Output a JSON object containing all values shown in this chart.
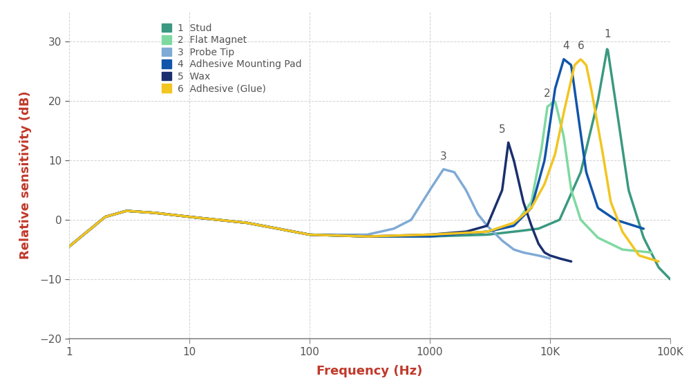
{
  "title": "",
  "xlabel": "Frequency (Hz)",
  "ylabel": "Relative sensitivity (dB)",
  "xlabel_color": "#c0392b",
  "ylabel_color": "#c0392b",
  "xlim": [
    1,
    100000
  ],
  "ylim": [
    -20,
    35
  ],
  "yticks": [
    -20,
    -10,
    0,
    10,
    20,
    30
  ],
  "xtick_labels": [
    "1",
    "10",
    "100",
    "1000",
    "10K",
    "100K"
  ],
  "xtick_vals": [
    1,
    10,
    100,
    1000,
    10000,
    100000
  ],
  "background_color": "#ffffff",
  "grid_color": "#cccccc",
  "series": [
    {
      "label": "1  Stud",
      "color": "#3a9980",
      "linewidth": 2.5,
      "points": [
        [
          1,
          -4.5
        ],
        [
          2,
          0.5
        ],
        [
          3,
          1.5
        ],
        [
          5,
          1.2
        ],
        [
          10,
          0.5
        ],
        [
          30,
          -0.5
        ],
        [
          100,
          -2.5
        ],
        [
          300,
          -2.8
        ],
        [
          1000,
          -2.8
        ],
        [
          3000,
          -2.5
        ],
        [
          5000,
          -2
        ],
        [
          8000,
          -1.5
        ],
        [
          12000,
          0
        ],
        [
          18000,
          8
        ],
        [
          25000,
          20
        ],
        [
          30000,
          29
        ],
        [
          35000,
          20
        ],
        [
          45000,
          5
        ],
        [
          60000,
          -3
        ],
        [
          80000,
          -8
        ],
        [
          100000,
          -10
        ]
      ],
      "peak_label": "1",
      "peak_x": 30000,
      "peak_y": 29.5
    },
    {
      "label": "2  Flat Magnet",
      "color": "#7ed9a0",
      "linewidth": 2.5,
      "points": [
        [
          1,
          -4.5
        ],
        [
          2,
          0.5
        ],
        [
          3,
          1.5
        ],
        [
          5,
          1.2
        ],
        [
          10,
          0.5
        ],
        [
          30,
          -0.5
        ],
        [
          100,
          -2.5
        ],
        [
          300,
          -2.8
        ],
        [
          1000,
          -2.8
        ],
        [
          3000,
          -2
        ],
        [
          5000,
          -1
        ],
        [
          7000,
          3
        ],
        [
          8500,
          12
        ],
        [
          9500,
          19
        ],
        [
          11000,
          20
        ],
        [
          13000,
          14
        ],
        [
          15000,
          5
        ],
        [
          18000,
          0
        ],
        [
          25000,
          -3
        ],
        [
          40000,
          -5
        ],
        [
          70000,
          -5.5
        ]
      ],
      "peak_label": "2",
      "peak_x": 9500,
      "peak_y": 19.5
    },
    {
      "label": "3  Probe Tip",
      "color": "#7faad5",
      "linewidth": 2.5,
      "points": [
        [
          1,
          -4.5
        ],
        [
          2,
          0.5
        ],
        [
          3,
          1.5
        ],
        [
          5,
          1.2
        ],
        [
          10,
          0.5
        ],
        [
          30,
          -0.5
        ],
        [
          100,
          -2.5
        ],
        [
          300,
          -2.5
        ],
        [
          500,
          -1.5
        ],
        [
          700,
          0
        ],
        [
          1000,
          5
        ],
        [
          1300,
          8.5
        ],
        [
          1600,
          8
        ],
        [
          2000,
          5
        ],
        [
          2500,
          1
        ],
        [
          3000,
          -1
        ],
        [
          4000,
          -3.5
        ],
        [
          5000,
          -5
        ],
        [
          6000,
          -5.5
        ],
        [
          8000,
          -6
        ],
        [
          10000,
          -6.5
        ]
      ],
      "peak_label": "3",
      "peak_x": 1300,
      "peak_y": 9
    },
    {
      "label": "4  Adhesive Mounting Pad",
      "color": "#1155aa",
      "linewidth": 2.5,
      "points": [
        [
          1,
          -4.5
        ],
        [
          2,
          0.5
        ],
        [
          3,
          1.5
        ],
        [
          5,
          1.2
        ],
        [
          10,
          0.5
        ],
        [
          30,
          -0.5
        ],
        [
          100,
          -2.5
        ],
        [
          300,
          -2.8
        ],
        [
          1000,
          -2.8
        ],
        [
          3000,
          -2
        ],
        [
          5000,
          -1
        ],
        [
          7000,
          2
        ],
        [
          9000,
          10
        ],
        [
          11000,
          22
        ],
        [
          13000,
          27
        ],
        [
          15000,
          26
        ],
        [
          17000,
          18
        ],
        [
          20000,
          8
        ],
        [
          25000,
          2
        ],
        [
          35000,
          0
        ],
        [
          60000,
          -1.5
        ]
      ],
      "peak_label": "4",
      "peak_x": 13500,
      "peak_y": 27.5
    },
    {
      "label": "5  Wax",
      "color": "#1a2f6e",
      "linewidth": 2.5,
      "points": [
        [
          1,
          -4.5
        ],
        [
          2,
          0.5
        ],
        [
          3,
          1.5
        ],
        [
          5,
          1.2
        ],
        [
          10,
          0.5
        ],
        [
          30,
          -0.5
        ],
        [
          100,
          -2.5
        ],
        [
          300,
          -2.8
        ],
        [
          1000,
          -2.5
        ],
        [
          2000,
          -2
        ],
        [
          3000,
          -1
        ],
        [
          4000,
          5
        ],
        [
          4500,
          13
        ],
        [
          5000,
          10
        ],
        [
          6000,
          3
        ],
        [
          7000,
          -1
        ],
        [
          8000,
          -4
        ],
        [
          9000,
          -5.5
        ],
        [
          10000,
          -6
        ],
        [
          12000,
          -6.5
        ],
        [
          15000,
          -7
        ]
      ],
      "peak_label": "5",
      "peak_x": 4000,
      "peak_y": 13.5
    },
    {
      "label": "6  Adhesive (Glue)",
      "color": "#f2c520",
      "linewidth": 2.5,
      "points": [
        [
          1,
          -4.5
        ],
        [
          2,
          0.5
        ],
        [
          3,
          1.5
        ],
        [
          5,
          1.2
        ],
        [
          10,
          0.5
        ],
        [
          30,
          -0.5
        ],
        [
          100,
          -2.5
        ],
        [
          300,
          -2.8
        ],
        [
          1000,
          -2.5
        ],
        [
          3000,
          -2
        ],
        [
          5000,
          -0.5
        ],
        [
          7000,
          2
        ],
        [
          9000,
          6
        ],
        [
          11000,
          11
        ],
        [
          13000,
          18
        ],
        [
          16000,
          26
        ],
        [
          18000,
          27
        ],
        [
          20000,
          26
        ],
        [
          22000,
          22
        ],
        [
          27000,
          12
        ],
        [
          32000,
          3
        ],
        [
          40000,
          -2
        ],
        [
          55000,
          -6
        ],
        [
          80000,
          -7
        ]
      ],
      "peak_label": "6",
      "peak_x": 18000,
      "peak_y": 27.5
    }
  ]
}
